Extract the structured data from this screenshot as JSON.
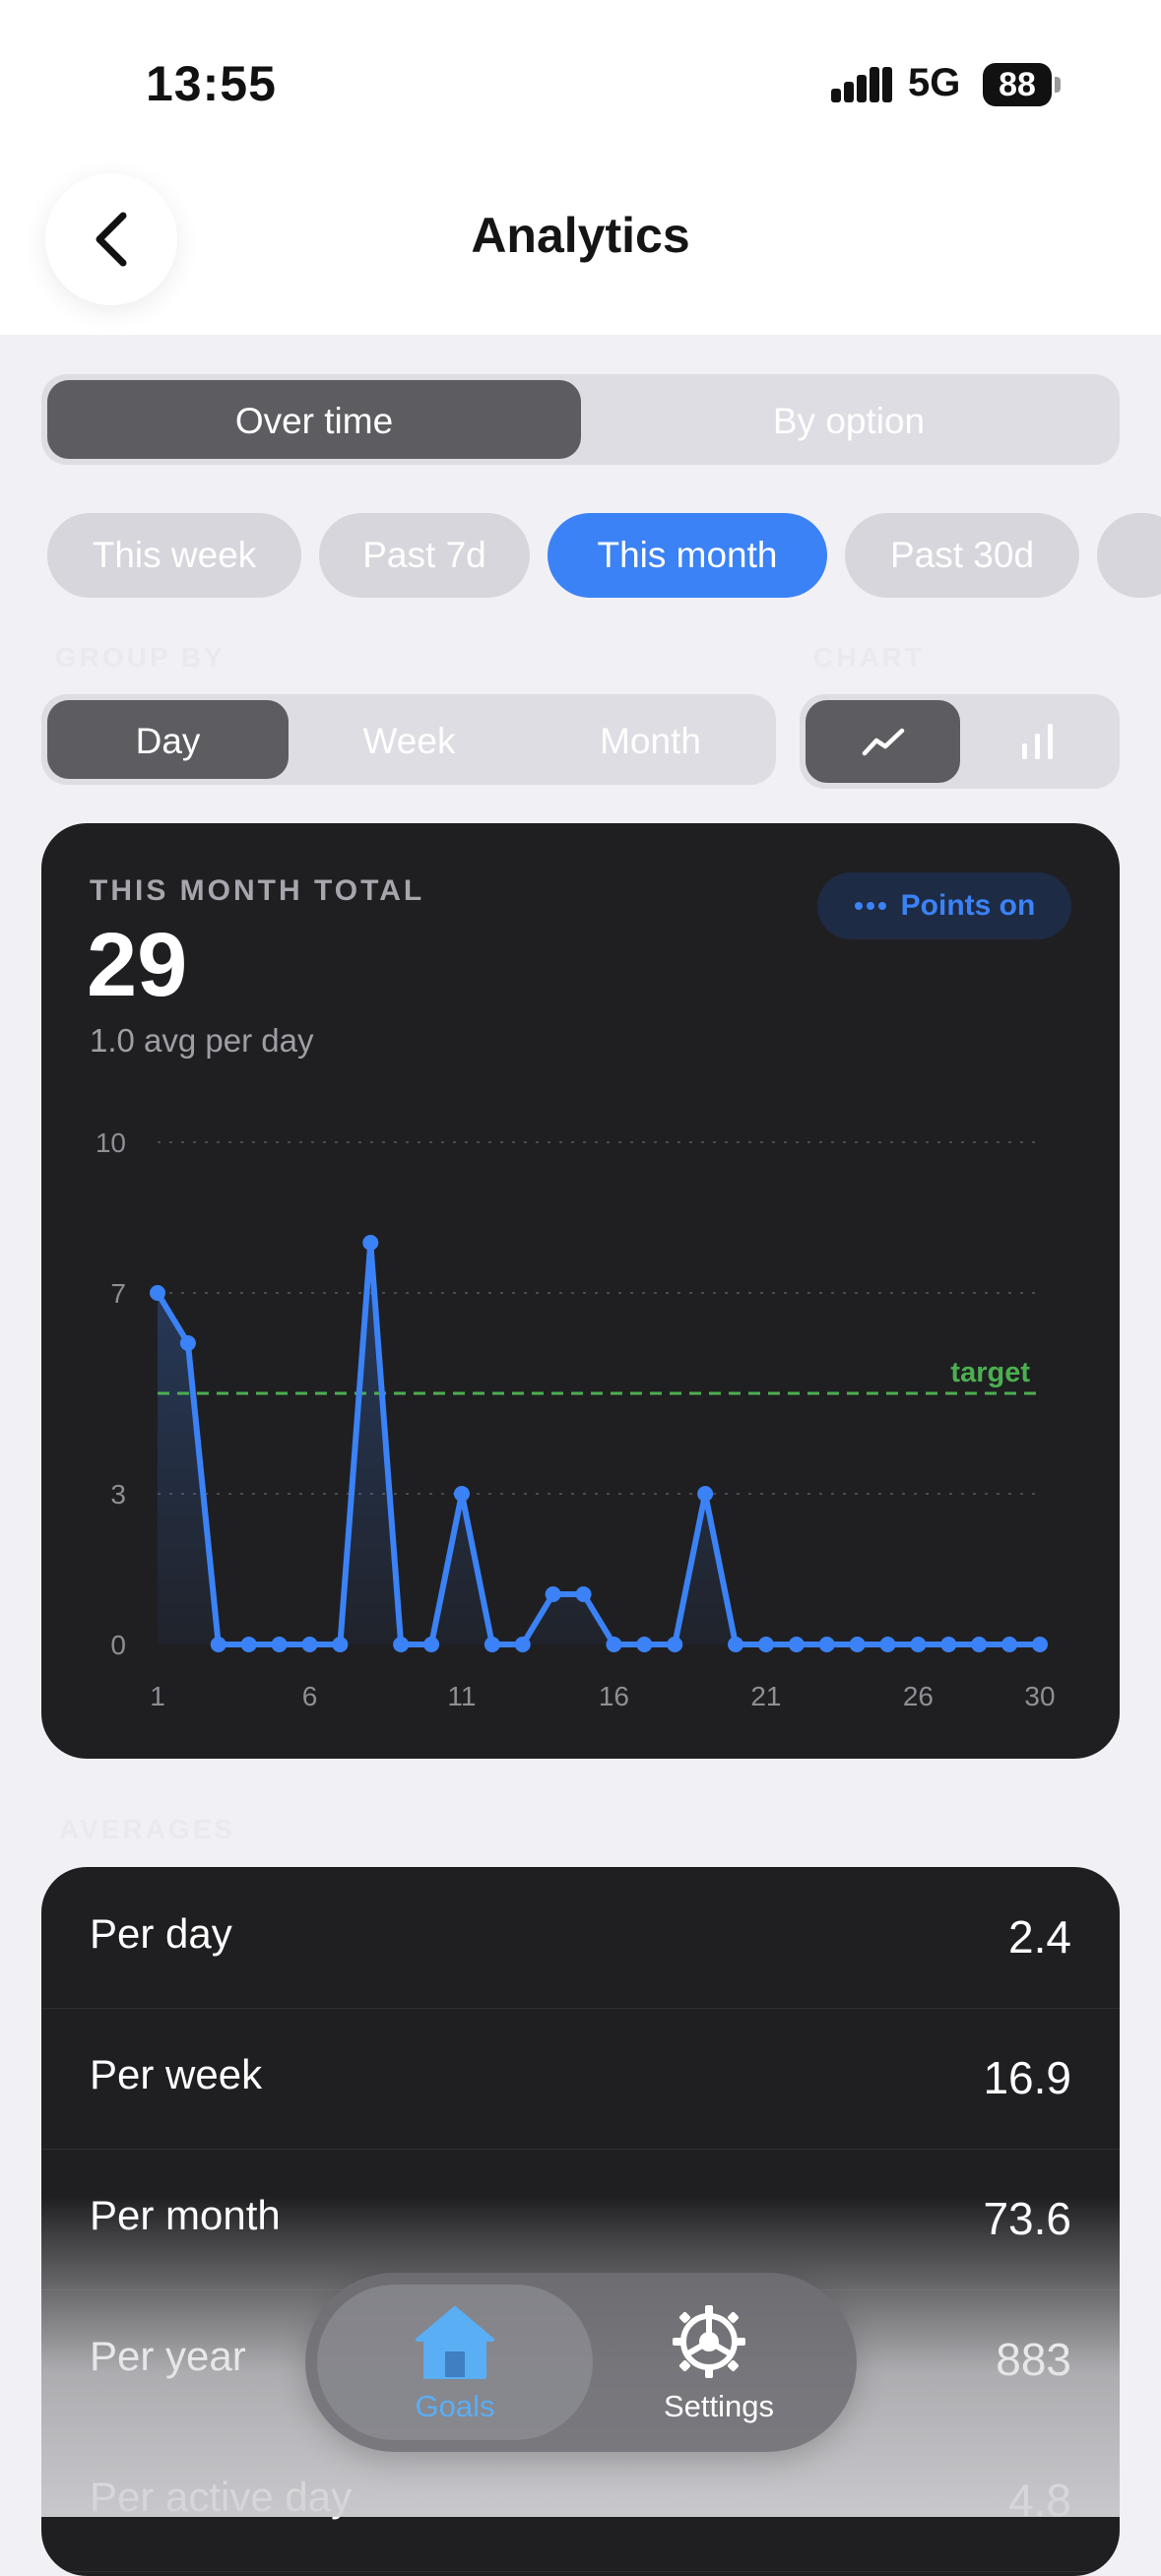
{
  "status_bar": {
    "time": "13:55",
    "network": "5G",
    "battery": "88"
  },
  "header": {
    "title": "Analytics"
  },
  "view_toggle": {
    "items": [
      "Over time",
      "By option"
    ],
    "active": 0
  },
  "range_pills": {
    "items": [
      "This week",
      "Past 7d",
      "This month",
      "Past 30d"
    ],
    "active": 2
  },
  "group_by": {
    "label": "GROUP BY",
    "items": [
      "Day",
      "Week",
      "Month"
    ],
    "active": 0
  },
  "chart_toggle": {
    "label": "CHART",
    "items": [
      "line-chart-icon",
      "bar-chart-icon"
    ],
    "active": 0
  },
  "summary": {
    "label": "THIS MONTH TOTAL",
    "total": "29",
    "subtitle": "1.0 avg per day",
    "points_toggle": "Points on"
  },
  "chart_data": {
    "type": "line",
    "title": "",
    "xlabel": "",
    "ylabel": "",
    "x": [
      1,
      2,
      3,
      4,
      5,
      6,
      7,
      8,
      9,
      10,
      11,
      12,
      13,
      14,
      15,
      16,
      17,
      18,
      19,
      20,
      21,
      22,
      23,
      24,
      25,
      26,
      27,
      28,
      29,
      30
    ],
    "series": [
      {
        "values": [
          7,
          6,
          0,
          0,
          0,
          0,
          0,
          8,
          0,
          0,
          3,
          0,
          0,
          1,
          1,
          0,
          0,
          0,
          3,
          0,
          0,
          0,
          0,
          0,
          0,
          0,
          0,
          0,
          0,
          0
        ]
      }
    ],
    "xticks": [
      1,
      6,
      11,
      16,
      21,
      26,
      30
    ],
    "yticks": [
      0,
      3,
      7,
      10
    ],
    "ylim": [
      0,
      10
    ],
    "target": {
      "value": 5,
      "label": "target"
    },
    "grid": true,
    "colors": {
      "line": "#3b82f6",
      "target": "#4caf50"
    }
  },
  "averages": {
    "label": "AVERAGES",
    "rows": [
      {
        "label": "Per day",
        "value": "2.4"
      },
      {
        "label": "Per week",
        "value": "16.9"
      },
      {
        "label": "Per month",
        "value": "73.6"
      },
      {
        "label": "Per year",
        "value": "883"
      },
      {
        "label": "Per active day",
        "value": "4.8"
      }
    ]
  },
  "tabbar": {
    "items": [
      {
        "label": "Goals",
        "icon": "house-icon"
      },
      {
        "label": "Settings",
        "icon": "gear-icon"
      }
    ],
    "active": 0
  }
}
